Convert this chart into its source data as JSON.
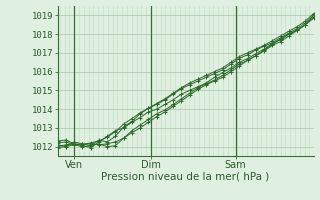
{
  "title": "",
  "xlabel": "Pression niveau de la mer( hPa )",
  "bg_color": "#e0f0e0",
  "grid_color_minor": "#c8e0c8",
  "grid_color_major": "#b0ceb0",
  "line_color": "#2d6a2d",
  "marker_color": "#2d6a2d",
  "vline_color": "#3a6a3a",
  "ylim": [
    1011.5,
    1019.5
  ],
  "yticks": [
    1012,
    1013,
    1014,
    1015,
    1016,
    1017,
    1018,
    1019
  ],
  "xtick_labels": [
    "Ven",
    "Dim",
    "Sam"
  ],
  "xtick_positions": [
    0.065,
    0.365,
    0.695
  ],
  "vline_positions": [
    0.065,
    0.365,
    0.695
  ],
  "xlim": [
    0.0,
    1.0
  ],
  "series": [
    [
      1012.0,
      1012.1,
      1012.15,
      1012.1,
      1012.2,
      1012.3,
      1012.5,
      1012.8,
      1013.2,
      1013.5,
      1013.8,
      1014.05,
      1014.25,
      1014.5,
      1014.8,
      1015.1,
      1015.3,
      1015.5,
      1015.7,
      1015.9,
      1016.1,
      1016.4,
      1016.7,
      1016.9,
      1017.15,
      1017.35,
      1017.55,
      1017.8,
      1018.05,
      1018.3,
      1018.6,
      1019.0
    ],
    [
      1011.95,
      1012.0,
      1012.1,
      1012.15,
      1012.15,
      1012.1,
      1012.15,
      1012.25,
      1012.45,
      1012.75,
      1013.0,
      1013.3,
      1013.6,
      1013.85,
      1014.15,
      1014.45,
      1014.75,
      1015.05,
      1015.3,
      1015.5,
      1015.7,
      1016.0,
      1016.3,
      1016.6,
      1016.85,
      1017.15,
      1017.45,
      1017.75,
      1018.0,
      1018.2,
      1018.5,
      1018.9
    ],
    [
      1012.2,
      1012.25,
      1012.1,
      1012.0,
      1012.05,
      1012.35,
      1012.25,
      1012.55,
      1013.05,
      1013.35,
      1013.75,
      1014.05,
      1014.3,
      1014.55,
      1014.85,
      1015.15,
      1015.4,
      1015.6,
      1015.8,
      1016.0,
      1016.2,
      1016.5,
      1016.8,
      1017.0,
      1017.2,
      1017.4,
      1017.65,
      1017.9,
      1018.15,
      1018.4,
      1018.7,
      1019.1
    ],
    [
      1012.1,
      1012.0,
      1012.25,
      1012.15,
      1012.05,
      1012.15,
      1012.0,
      1012.05,
      1012.45,
      1012.85,
      1013.15,
      1013.45,
      1013.75,
      1013.95,
      1014.25,
      1014.55,
      1014.85,
      1015.15,
      1015.35,
      1015.55,
      1015.8,
      1016.1,
      1016.4,
      1016.6,
      1016.85,
      1017.1,
      1017.4,
      1017.6,
      1017.9,
      1018.2,
      1018.5,
      1018.85
    ],
    [
      1012.3,
      1012.35,
      1012.15,
      1012.05,
      1011.95,
      1012.25,
      1012.55,
      1012.85,
      1013.0,
      1013.3,
      1013.55,
      1013.85,
      1014.0,
      1014.25,
      1014.5,
      1014.8,
      1015.0,
      1015.2,
      1015.4,
      1015.7,
      1015.95,
      1016.2,
      1016.5,
      1016.7,
      1016.95,
      1017.2,
      1017.5,
      1017.7,
      1018.0,
      1018.2,
      1018.5,
      1019.0
    ]
  ]
}
